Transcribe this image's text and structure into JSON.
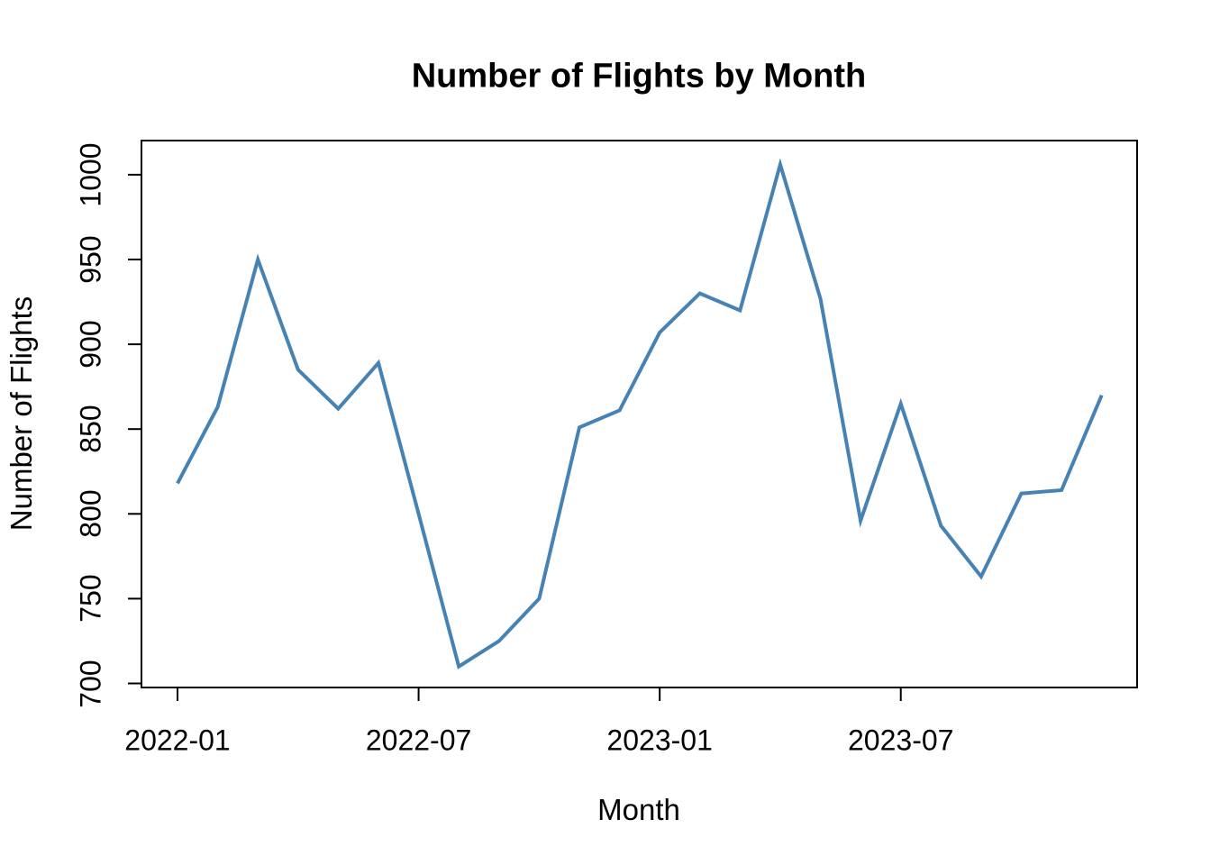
{
  "window": {
    "background_color": "#ffffff"
  },
  "chart_data": {
    "type": "line",
    "title": "Number of Flights by Month",
    "xlabel": "Month",
    "ylabel": "Number of Flights",
    "x": [
      "2022-01",
      "2022-02",
      "2022-03",
      "2022-04",
      "2022-05",
      "2022-06",
      "2022-07",
      "2022-08",
      "2022-09",
      "2022-10",
      "2022-11",
      "2022-12",
      "2023-01",
      "2023-02",
      "2023-03",
      "2023-04",
      "2023-05",
      "2023-06",
      "2023-07",
      "2023-08",
      "2023-09",
      "2023-10",
      "2023-11",
      "2023-12"
    ],
    "series": [
      {
        "name": "Number of Flights",
        "values": [
          818,
          863,
          950,
          885,
          862,
          889,
          800,
          710,
          725,
          750,
          851,
          861,
          907,
          930,
          920,
          1006,
          927,
          796,
          865,
          793,
          763,
          812,
          814,
          870
        ]
      }
    ],
    "ylim": [
      697,
      1020
    ],
    "yticks": [
      700,
      750,
      800,
      850,
      900,
      950,
      1000
    ],
    "xticks": [
      {
        "label": "2022-01",
        "month_index": 0
      },
      {
        "label": "2022-07",
        "month_index": 6
      },
      {
        "label": "2023-01",
        "month_index": 12
      },
      {
        "label": "2023-07",
        "month_index": 18
      }
    ],
    "line_color": "#4682B4",
    "axis_color": "#000000",
    "grid": false,
    "legend": "none"
  }
}
